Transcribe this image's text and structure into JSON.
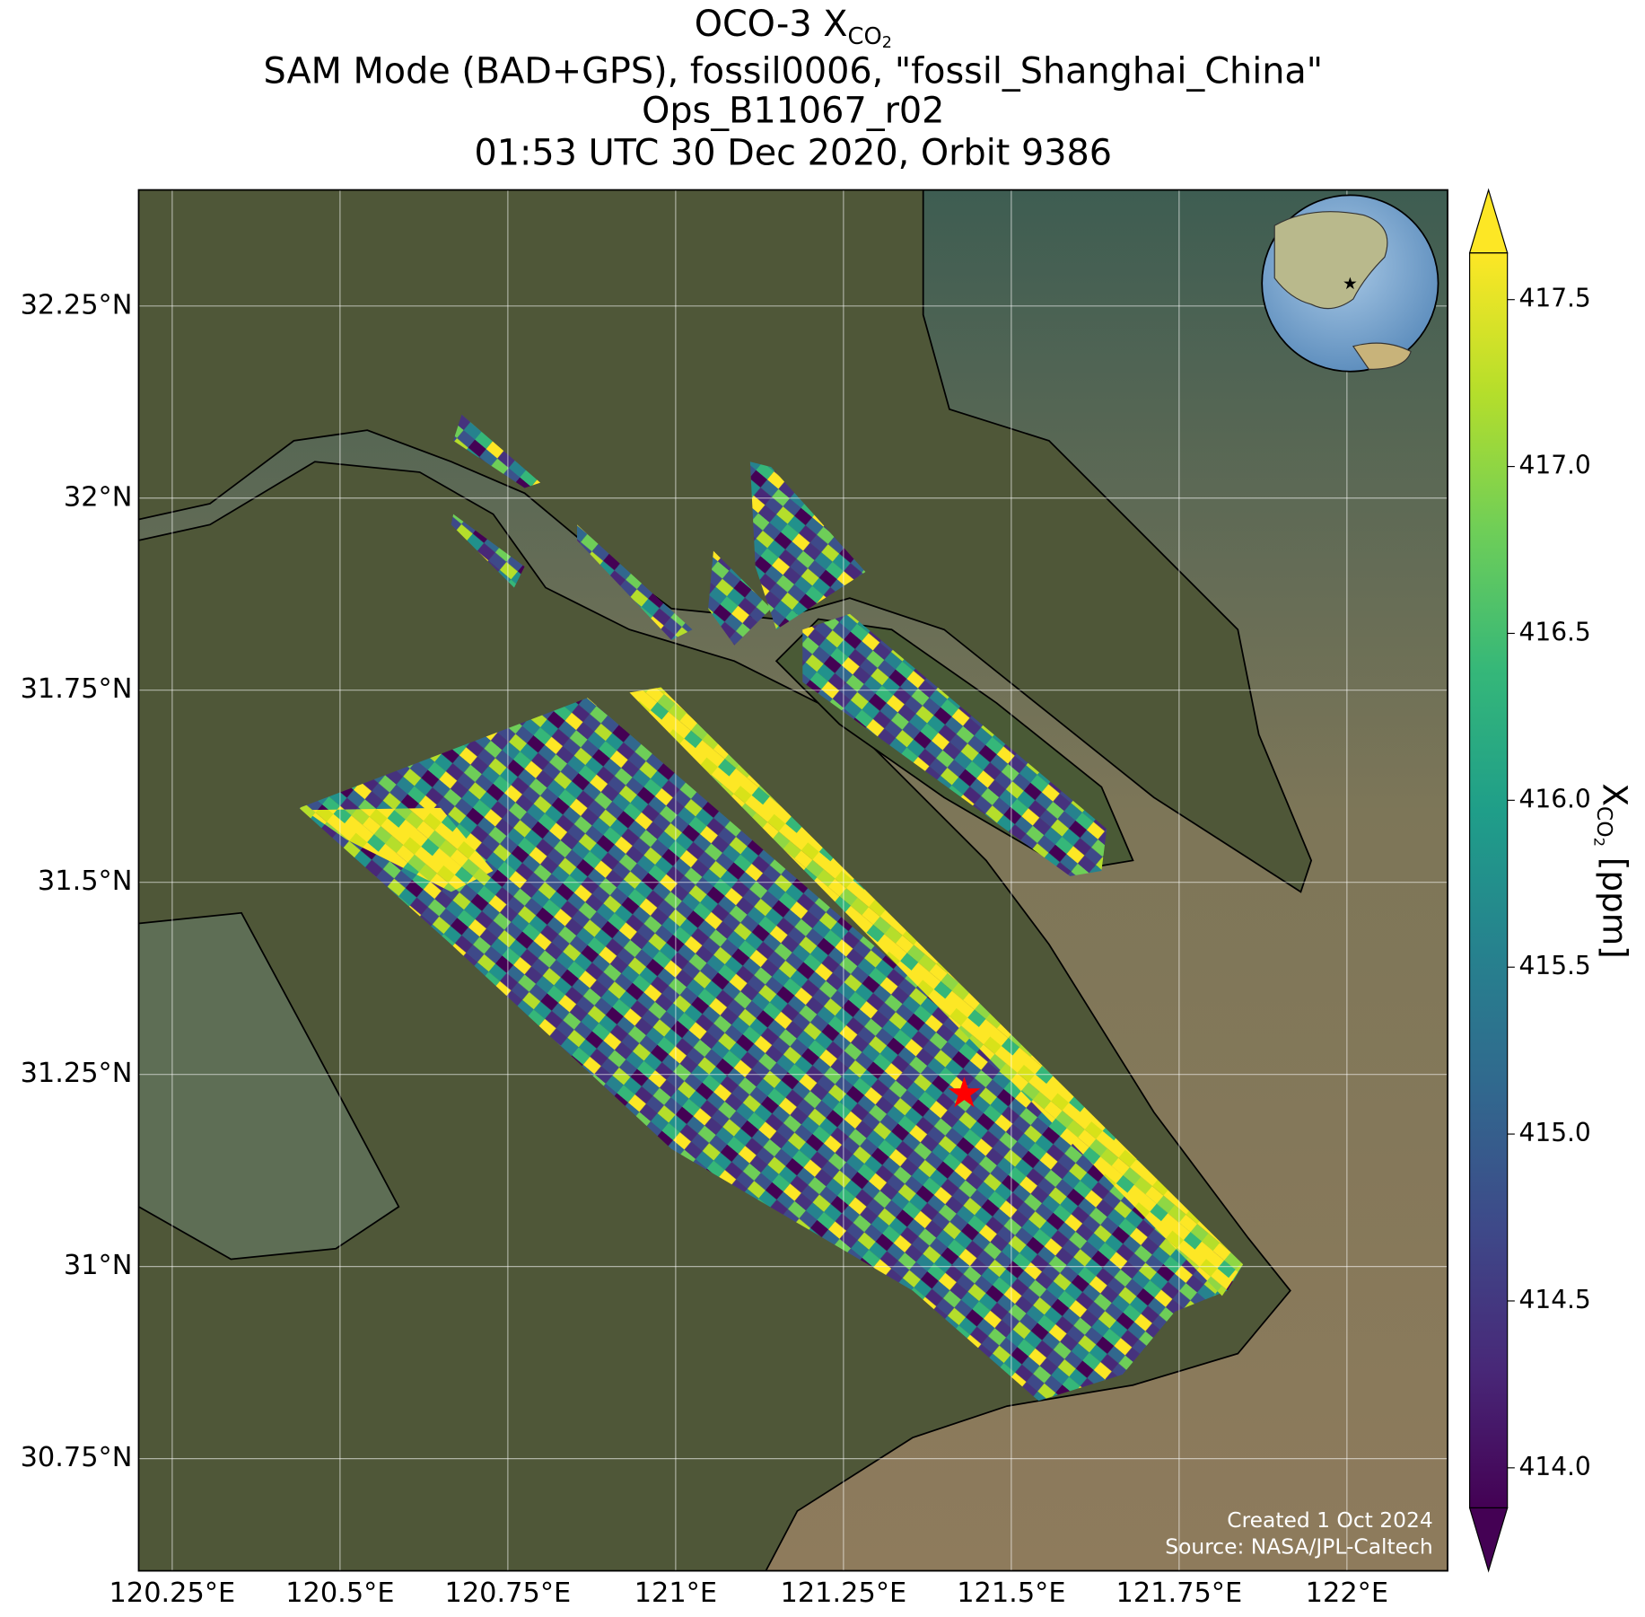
{
  "map": {
    "type": "map",
    "title": {
      "text": "OCO-3 X",
      "sub": "CO",
      "subsub": "2"
    },
    "subtitle_lines": [
      "SAM Mode (BAD+GPS), fossil0006, \"fossil_Shanghai_China\"",
      "Ops_B11067_r02",
      "01:53 UTC 30 Dec 2020, Orbit 9386"
    ],
    "xlim": [
      120.2,
      122.15
    ],
    "ylim": [
      30.604,
      32.401
    ],
    "xticks": [
      {
        "value": 120.25,
        "label": "120.25°E"
      },
      {
        "value": 120.5,
        "label": "120.5°E"
      },
      {
        "value": 120.75,
        "label": "120.75°E"
      },
      {
        "value": 121,
        "label": "121°E"
      },
      {
        "value": 121.25,
        "label": "121.25°E"
      },
      {
        "value": 121.5,
        "label": "121.5°E"
      },
      {
        "value": 121.75,
        "label": "121.75°E"
      },
      {
        "value": 122,
        "label": "122°E"
      }
    ],
    "yticks": [
      {
        "value": 30.75,
        "label": "30.75°N"
      },
      {
        "value": 31,
        "label": "31°N"
      },
      {
        "value": 31.25,
        "label": "31.25°N"
      },
      {
        "value": 31.5,
        "label": "31.5°N"
      },
      {
        "value": 31.75,
        "label": "31.75°N"
      },
      {
        "value": 32,
        "label": "32°N"
      },
      {
        "value": 32.25,
        "label": "32.25°N"
      }
    ],
    "grid": true,
    "site": {
      "lon": 121.43,
      "lat": 31.225,
      "color": "#ff0000"
    }
  },
  "colorbar": {
    "colormap": "viridis",
    "lim": [
      413.88,
      417.64
    ],
    "ticks": [
      {
        "value": 414,
        "label": "414.0"
      },
      414.5,
      {
        "value": 415,
        "label": "415.0"
      },
      415.5,
      {
        "value": 416,
        "label": "416.0"
      },
      416.5,
      {
        "value": 417,
        "label": "417.0"
      },
      417.5
    ],
    "label": {
      "text": "X",
      "sub": "CO",
      "subsub": "2",
      "unit": "[ppm]"
    }
  },
  "credits": [
    "Created 1 Oct 2024",
    "Source: NASA/JPL-Caltech"
  ]
}
